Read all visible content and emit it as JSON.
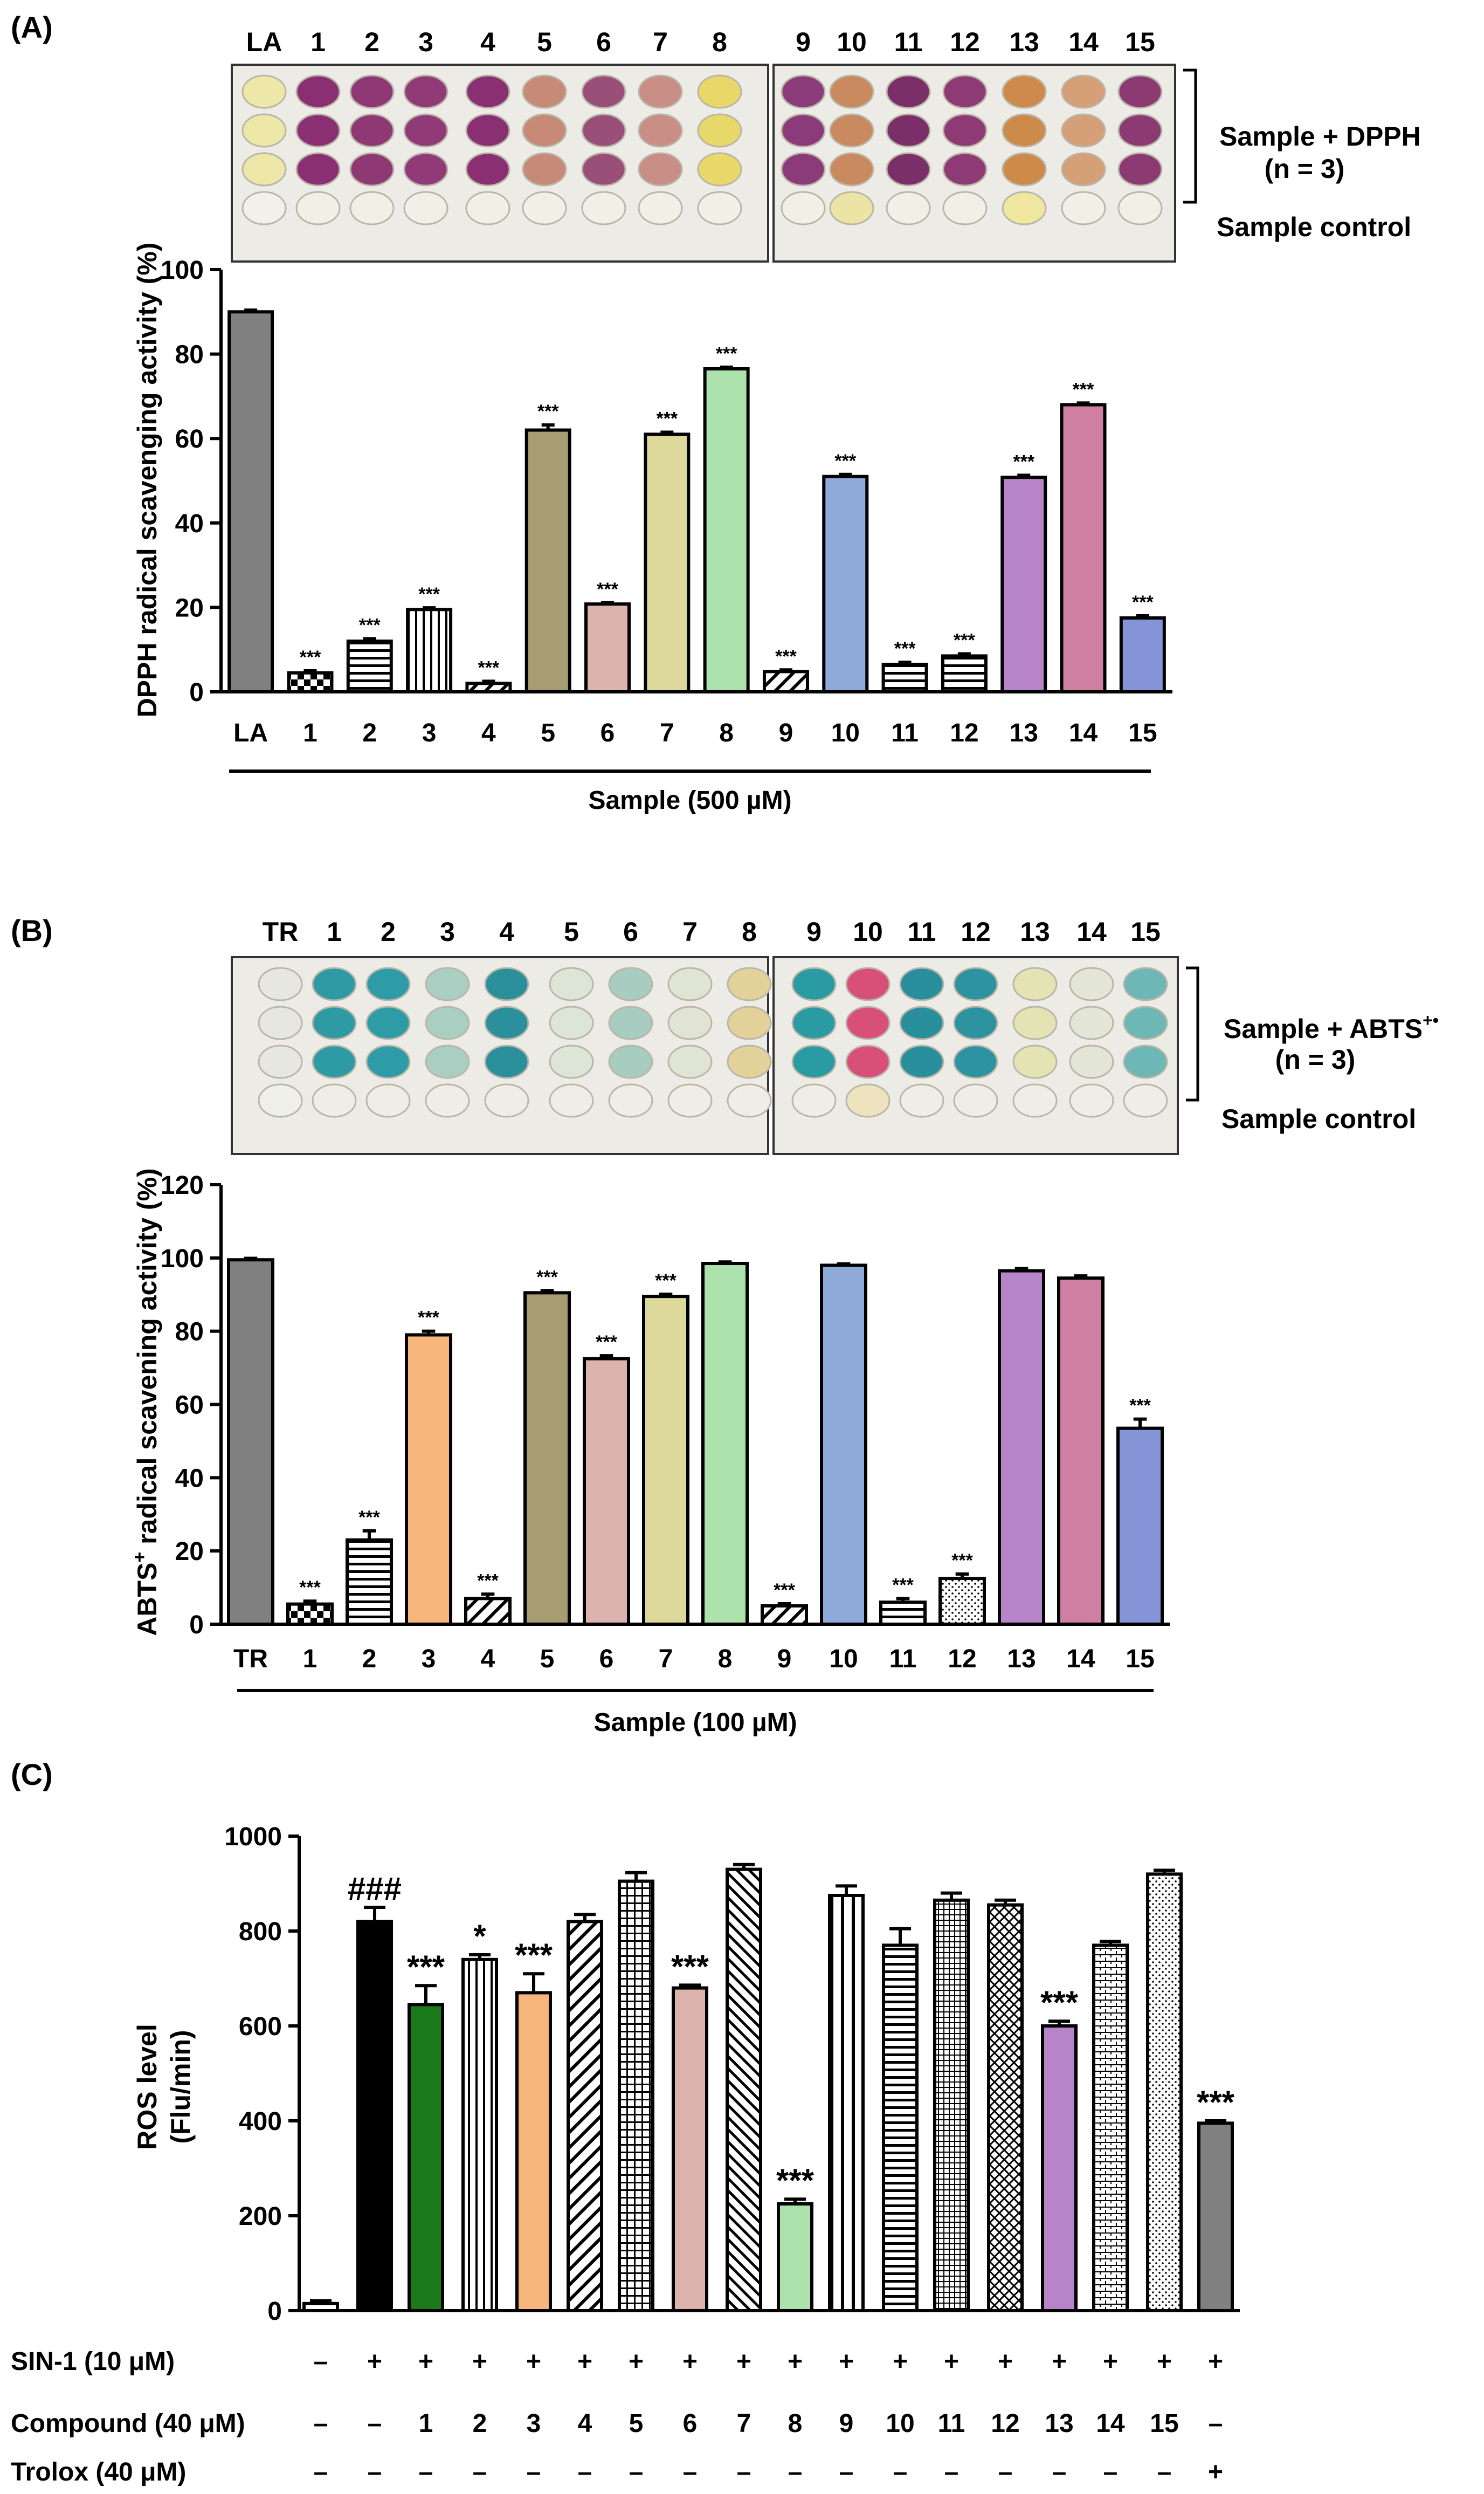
{
  "colors": {
    "dpph_purple": "#8b3a7a",
    "dpph_orange": "#c9895a",
    "dpph_yellow": "#e6cf5a",
    "abts_teal": "#2f9aa5",
    "abts_pink": "#d9507a",
    "abts_pale": "#cfe0c4"
  },
  "chart_data": [
    {
      "id": "A",
      "type": "bar",
      "panel_label": "(A)",
      "title": "",
      "ylabel": "DPPH radical scavenging activity (%)",
      "xlabel": "Sample (500 µM)",
      "ylim": [
        0,
        100
      ],
      "yticks": [
        "0",
        "20",
        "40",
        "60",
        "80",
        "100"
      ],
      "categories": [
        "LA",
        "1",
        "2",
        "3",
        "4",
        "5",
        "6",
        "7",
        "8",
        "9",
        "10",
        "11",
        "12",
        "13",
        "14",
        "15"
      ],
      "values": [
        90,
        4.5,
        12,
        19.5,
        2,
        62,
        20.8,
        61,
        76.5,
        4.8,
        51,
        6.5,
        8.5,
        50.8,
        68,
        17.5
      ],
      "errors": [
        0.4,
        0.5,
        0.6,
        0.4,
        0.5,
        1.2,
        0.3,
        0.5,
        0.4,
        0.4,
        0.5,
        0.5,
        0.5,
        0.5,
        0.4,
        0.5
      ],
      "annotations": [
        "",
        "***",
        "***",
        "***",
        "***",
        "***",
        "***",
        "***",
        "***",
        "***",
        "***",
        "***",
        "***",
        "***",
        "***",
        "***"
      ],
      "bar_colors": [
        "#808080",
        "#ffffff",
        "#ffffff",
        "#ffffff",
        "#ffffff",
        "#a79c72",
        "#ddb3ad",
        "#dcd99a",
        "#aee2ad",
        "#ffffff",
        "#8eaad8",
        "#ffffff",
        "#ffffff",
        "#b884c9",
        "#cf7fa1",
        "#8593d7"
      ],
      "bar_patterns": [
        "",
        "checker",
        "hlines",
        "vlines",
        "diag",
        "",
        "",
        "",
        "",
        "diag",
        "",
        "hlines",
        "hlines",
        "",
        "",
        ""
      ],
      "plate": {
        "column_labels": [
          "LA",
          "1",
          "2",
          "3",
          "4",
          "5",
          "6",
          "7",
          "8",
          "9",
          "10",
          "11",
          "12",
          "13",
          "14",
          "15"
        ],
        "row_label_main": "Sample + DPPH",
        "row_label_n": "(n = 3)",
        "row_label_control": "Sample control"
      }
    },
    {
      "id": "B",
      "type": "bar",
      "panel_label": "(B)",
      "title": "",
      "ylabel_main": "ABTS",
      "ylabel_sup": "+",
      "ylabel_rest": " radical scavening activity (%)",
      "xlabel": "Sample (100 µM)",
      "ylim": [
        0,
        120
      ],
      "yticks": [
        "0",
        "20",
        "40",
        "60",
        "80",
        "100",
        "120"
      ],
      "categories": [
        "TR",
        "1",
        "2",
        "3",
        "4",
        "5",
        "6",
        "7",
        "8",
        "9",
        "10",
        "11",
        "12",
        "13",
        "14",
        "15"
      ],
      "values": [
        99.5,
        5.5,
        23,
        79,
        7,
        90.5,
        72.5,
        89.5,
        98.5,
        5,
        98,
        6,
        12.5,
        96.5,
        94.5,
        53.5
      ],
      "errors": [
        0.4,
        0.8,
        2.5,
        1.0,
        1.2,
        0.6,
        0.8,
        0.6,
        0.4,
        0.6,
        0.4,
        1.0,
        1.2,
        0.6,
        0.6,
        2.5
      ],
      "annotations": [
        "",
        "***",
        "***",
        "***",
        "***",
        "***",
        "***",
        "***",
        "",
        "***",
        "",
        "***",
        "***",
        "",
        "",
        "***"
      ],
      "bar_colors": [
        "#808080",
        "#ffffff",
        "#ffffff",
        "#f6b57a",
        "#ffffff",
        "#a79c72",
        "#ddb3ad",
        "#dcd99a",
        "#aee2ad",
        "#ffffff",
        "#8eaad8",
        "#ffffff",
        "#ffffff",
        "#b884c9",
        "#cf7fa1",
        "#8593d7"
      ],
      "bar_patterns": [
        "",
        "checker",
        "hlines",
        "",
        "diag",
        "",
        "",
        "",
        "",
        "diag",
        "",
        "hlines",
        "dots",
        "",
        "",
        ""
      ],
      "plate": {
        "column_labels": [
          "TR",
          "1",
          "2",
          "3",
          "4",
          "5",
          "6",
          "7",
          "8",
          "9",
          "10",
          "11",
          "12",
          "13",
          "14",
          "15"
        ],
        "row_label_main": "Sample + ABTS",
        "row_label_sup": "+•",
        "row_label_n": "(n = 3)",
        "row_label_control": "Sample control"
      }
    },
    {
      "id": "C",
      "type": "bar",
      "panel_label": "(C)",
      "title": "",
      "ylabel_line1": "ROS level",
      "ylabel_line2": "(Flu/min)",
      "ylim": [
        0,
        1000
      ],
      "yticks": [
        "0",
        "200",
        "400",
        "600",
        "800",
        "1000"
      ],
      "values": [
        15,
        820,
        645,
        740,
        670,
        820,
        905,
        680,
        930,
        225,
        875,
        770,
        865,
        855,
        600,
        770,
        920,
        395
      ],
      "errors": [
        6,
        30,
        40,
        10,
        40,
        15,
        18,
        6,
        10,
        10,
        20,
        35,
        15,
        10,
        10,
        8,
        8,
        5
      ],
      "annotations": [
        "",
        "###",
        "***",
        "*",
        "***",
        "",
        "",
        "***",
        "",
        "***",
        "",
        "",
        "",
        "",
        "***",
        "",
        "",
        "***"
      ],
      "bar_colors": [
        "#ffffff",
        "#000000",
        "#1a7a1a",
        "#ffffff",
        "#f6b57a",
        "#ffffff",
        "#ffffff",
        "#ddb3ad",
        "#ffffff",
        "#aee2ad",
        "#ffffff",
        "#ffffff",
        "#ffffff",
        "#ffffff",
        "#b884c9",
        "#ffffff",
        "#ffffff",
        "#808080"
      ],
      "bar_patterns": [
        "",
        "",
        "",
        "vlines",
        "",
        "diag",
        "grid",
        "",
        "diagR",
        "",
        "vlinesWide",
        "hlines",
        "gridFine",
        "cross",
        "",
        "brick",
        "dots",
        ""
      ],
      "rows": [
        {
          "label": "SIN-1 (10 μM)",
          "values": [
            "–",
            "+",
            "+",
            "+",
            "+",
            "+",
            "+",
            "+",
            "+",
            "+",
            "+",
            "+",
            "+",
            "+",
            "+",
            "+",
            "+",
            "+"
          ]
        },
        {
          "label": "Compound (40 μM)",
          "values": [
            "–",
            "–",
            "1",
            "2",
            "3",
            "4",
            "5",
            "6",
            "7",
            "8",
            "9",
            "10",
            "11",
            "12",
            "13",
            "14",
            "15",
            "–"
          ]
        },
        {
          "label": "Trolox (40 μM)",
          "values": [
            "–",
            "–",
            "–",
            "–",
            "–",
            "–",
            "–",
            "–",
            "–",
            "–",
            "–",
            "–",
            "–",
            "–",
            "–",
            "–",
            "–",
            "+"
          ]
        }
      ]
    }
  ]
}
